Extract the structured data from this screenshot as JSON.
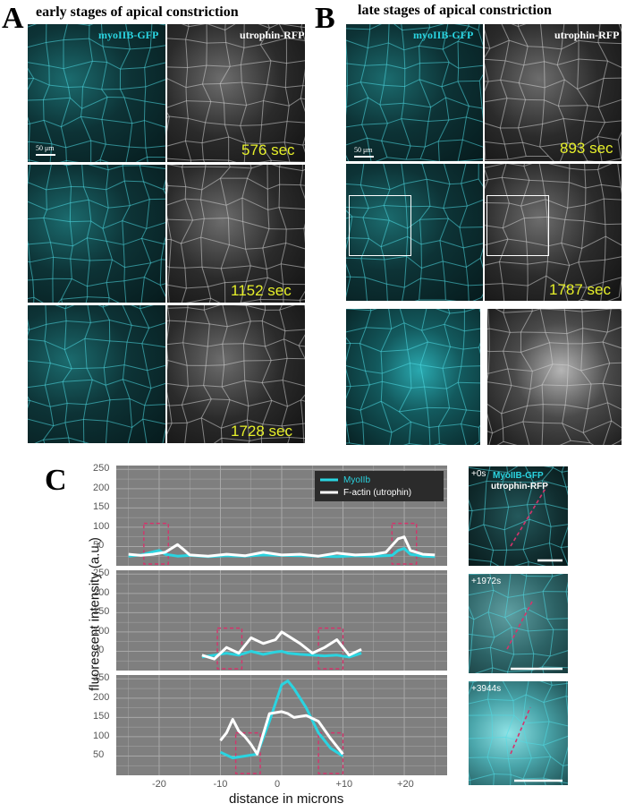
{
  "panel_a": {
    "letter": "A",
    "title": "early stages of apical constriction",
    "channel_left": "myoIIB-GFP",
    "channel_right": "utrophin-RFP",
    "scale_bar": "50 μm",
    "times": [
      "576 sec",
      "1152 sec",
      "1728 sec"
    ]
  },
  "panel_b": {
    "letter": "B",
    "title": "late stages of apical constriction",
    "channel_left": "myoIIB-GFP",
    "channel_right": "utrophin-RFP",
    "scale_bar": "50 μm",
    "times": [
      "893 sec",
      "1787 sec"
    ]
  },
  "panel_c": {
    "letter": "C",
    "thumbs": {
      "channel_left": "MyoIIB-GFP",
      "channel_right": "utrophin-RFP",
      "times": [
        "+0s",
        "+1972s",
        "+3944s"
      ]
    }
  },
  "colors": {
    "myosin": "#2ad4e0",
    "actin": "#ffffff",
    "panel_bg": "#7f7f7f",
    "grid": "#a8a8a8",
    "box": "#d6336c",
    "time_text": "#e6ef2a"
  },
  "chart_data": {
    "type": "line",
    "xlabel": "distance in microns",
    "ylabel": "fluorescent intensity (a.u.)",
    "xlim": [
      -27,
      27
    ],
    "ylim": [
      0,
      260
    ],
    "xticks": [
      -20,
      -10,
      0,
      10,
      20
    ],
    "xtick_labels": [
      "-20",
      "-10",
      "0",
      "+10",
      "+20"
    ],
    "yticks": [
      50,
      100,
      150,
      200,
      250
    ],
    "legend": {
      "position": "top-right",
      "entries": [
        "MyoIIb",
        "F-actin (utrophin)"
      ]
    },
    "grid": true,
    "panels": [
      {
        "series": [
          {
            "name": "MyoIIb",
            "x": [
              -25,
              -23,
              -21,
              -20,
              -19,
              -17,
              -15,
              -12,
              -9,
              -6,
              -3,
              0,
              3,
              6,
              9,
              12,
              15,
              18,
              19,
              20,
              21,
              23,
              25
            ],
            "y": [
              25,
              28,
              36,
              40,
              30,
              25,
              27,
              24,
              26,
              25,
              28,
              27,
              26,
              25,
              24,
              26,
              25,
              27,
              40,
              45,
              30,
              25,
              24
            ]
          },
          {
            "name": "F-actin (utrophin)",
            "x": [
              -25,
              -23,
              -21,
              -19,
              -17,
              -16,
              -15,
              -12,
              -9,
              -6,
              -3,
              0,
              3,
              6,
              9,
              12,
              15,
              17,
              19,
              20,
              21,
              23,
              25
            ],
            "y": [
              30,
              27,
              30,
              35,
              55,
              42,
              28,
              25,
              30,
              26,
              35,
              28,
              30,
              25,
              33,
              28,
              30,
              35,
              70,
              75,
              40,
              30,
              28
            ]
          }
        ],
        "highlight_boxes": [
          [
            -22.5,
            -18.5
          ],
          [
            18,
            22
          ]
        ]
      },
      {
        "series": [
          {
            "name": "MyoIIb",
            "x": [
              -13,
              -11,
              -9,
              -7,
              -5,
              -3,
              -1,
              0,
              1,
              3,
              5,
              7,
              9,
              11,
              13
            ],
            "y": [
              35,
              40,
              45,
              40,
              50,
              42,
              48,
              50,
              45,
              42,
              40,
              38,
              40,
              35,
              45
            ]
          },
          {
            "name": "F-actin (utrophin)",
            "x": [
              -13,
              -11,
              -9,
              -7,
              -5,
              -3,
              -1,
              0,
              1,
              3,
              5,
              7,
              9,
              11,
              13
            ],
            "y": [
              40,
              30,
              60,
              45,
              85,
              70,
              80,
              100,
              90,
              70,
              45,
              60,
              80,
              40,
              55
            ]
          }
        ],
        "highlight_boxes": [
          [
            -10.5,
            -6.5
          ],
          [
            6,
            10
          ]
        ]
      },
      {
        "series": [
          {
            "name": "MyoIIb",
            "x": [
              -10,
              -8,
              -6,
              -4,
              -2,
              0,
              1,
              2,
              4,
              6,
              8,
              10
            ],
            "y": [
              60,
              45,
              50,
              55,
              140,
              235,
              245,
              225,
              175,
              110,
              70,
              50
            ]
          },
          {
            "name": "F-actin (utrophin)",
            "x": [
              -10,
              -9,
              -8,
              -7,
              -6,
              -5,
              -4,
              -2,
              0,
              1,
              2,
              4,
              6,
              8,
              10
            ],
            "y": [
              90,
              110,
              145,
              115,
              100,
              80,
              55,
              160,
              165,
              160,
              150,
              155,
              140,
              95,
              55
            ]
          }
        ],
        "highlight_boxes": [
          [
            -7.5,
            -3.5
          ],
          [
            6,
            10
          ]
        ]
      }
    ]
  }
}
